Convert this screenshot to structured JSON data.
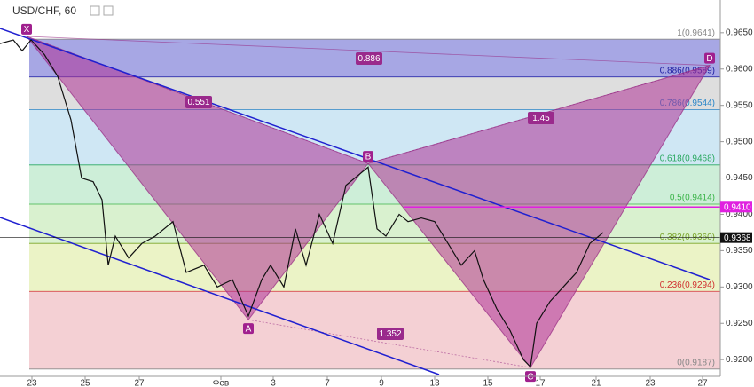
{
  "chart_data": {
    "type": "line",
    "title": "USD/CHF, 60",
    "xlim": [
      0,
      812
    ],
    "ylim": [
      0.9177,
      0.9695
    ],
    "xticks": [
      {
        "value": 36,
        "label": "23"
      },
      {
        "value": 96,
        "label": "25"
      },
      {
        "value": 157,
        "label": "27"
      },
      {
        "value": 249,
        "label": "Фев"
      },
      {
        "value": 308,
        "label": "3"
      },
      {
        "value": 369,
        "label": "7"
      },
      {
        "value": 430,
        "label": "9"
      },
      {
        "value": 490,
        "label": "13"
      },
      {
        "value": 550,
        "label": "15"
      },
      {
        "value": 609,
        "label": "17"
      },
      {
        "value": 672,
        "label": "21"
      },
      {
        "value": 733,
        "label": "23"
      },
      {
        "value": 792,
        "label": "27"
      }
    ],
    "yticks": [
      {
        "value": 0.965,
        "label": "0.9650"
      },
      {
        "value": 0.96,
        "label": "0.9600"
      },
      {
        "value": 0.955,
        "label": "0.9550"
      },
      {
        "value": 0.95,
        "label": "0.9500"
      },
      {
        "value": 0.945,
        "label": "0.9450"
      },
      {
        "value": 0.94,
        "label": "0.9400"
      },
      {
        "value": 0.935,
        "label": "0.9350"
      },
      {
        "value": 0.93,
        "label": "0.9300"
      },
      {
        "value": 0.925,
        "label": "0.9250"
      },
      {
        "value": 0.92,
        "label": "0.9200"
      }
    ],
    "series": [
      {
        "name": "USD/CHF",
        "color": "#111111",
        "x": [
          0,
          15,
          25,
          35,
          50,
          65,
          80,
          92,
          105,
          115,
          122,
          130,
          145,
          160,
          175,
          195,
          210,
          230,
          245,
          262,
          280,
          295,
          305,
          320,
          333,
          345,
          360,
          375,
          390,
          400,
          415,
          425,
          435,
          450,
          460,
          475,
          490,
          505,
          520,
          535,
          545,
          560,
          575,
          590,
          598,
          605,
          620,
          635,
          650,
          665,
          680
        ],
        "values": [
          0.9635,
          0.964,
          0.9625,
          0.964,
          0.962,
          0.959,
          0.953,
          0.945,
          0.9445,
          0.942,
          0.933,
          0.937,
          0.934,
          0.936,
          0.937,
          0.939,
          0.932,
          0.933,
          0.93,
          0.931,
          0.926,
          0.931,
          0.933,
          0.93,
          0.938,
          0.933,
          0.94,
          0.936,
          0.944,
          0.945,
          0.9465,
          0.938,
          0.937,
          0.94,
          0.939,
          0.9395,
          0.939,
          0.936,
          0.933,
          0.935,
          0.931,
          0.927,
          0.924,
          0.92,
          0.919,
          0.925,
          0.928,
          0.93,
          0.932,
          0.936,
          0.9375
        ]
      }
    ],
    "price_labels": [
      {
        "value": 0.941,
        "label": "0.9410",
        "color": "#e020e0"
      },
      {
        "value": 0.9368,
        "label": "0.9368",
        "color": "#111111"
      }
    ],
    "fib_levels": [
      {
        "label": "1(0.9641)",
        "price": 0.9641,
        "color": "#888888",
        "band": "#a7a7e4"
      },
      {
        "label": "0.886(0.9589)",
        "price": 0.9589,
        "color": "#1a1aa0",
        "band": "#dedede"
      },
      {
        "label": "0.786(0.9544)",
        "price": 0.9544,
        "color": "#2a86c8",
        "band": "#cfe7f4"
      },
      {
        "label": "0.618(0.9468)",
        "price": 0.9468,
        "color": "#2aa860",
        "band": "#cdeed8"
      },
      {
        "label": "0.5(0.9414)",
        "price": 0.9414,
        "color": "#3cb44a",
        "band": "#d9f1cf"
      },
      {
        "label": "0.382(0.9360)",
        "price": 0.936,
        "color": "#7aa428",
        "band": "#ebf3c6"
      },
      {
        "label": "0.236(0.9294)",
        "price": 0.9294,
        "color": "#d03030",
        "band": "#f4d0d4"
      },
      {
        "label": "0(0.9187)",
        "price": 0.9187,
        "color": "#888888",
        "band": null
      }
    ],
    "pattern_points": [
      {
        "name": "X",
        "x": 30,
        "price": 0.9645
      },
      {
        "name": "A",
        "x": 280,
        "price": 0.9255
      },
      {
        "name": "B",
        "x": 415,
        "price": 0.947
      },
      {
        "name": "C",
        "x": 598,
        "price": 0.9189
      },
      {
        "name": "D",
        "x": 800,
        "price": 0.9605
      }
    ],
    "ratios": [
      "0.551",
      "1.45",
      "0.886",
      "1.352"
    ]
  }
}
